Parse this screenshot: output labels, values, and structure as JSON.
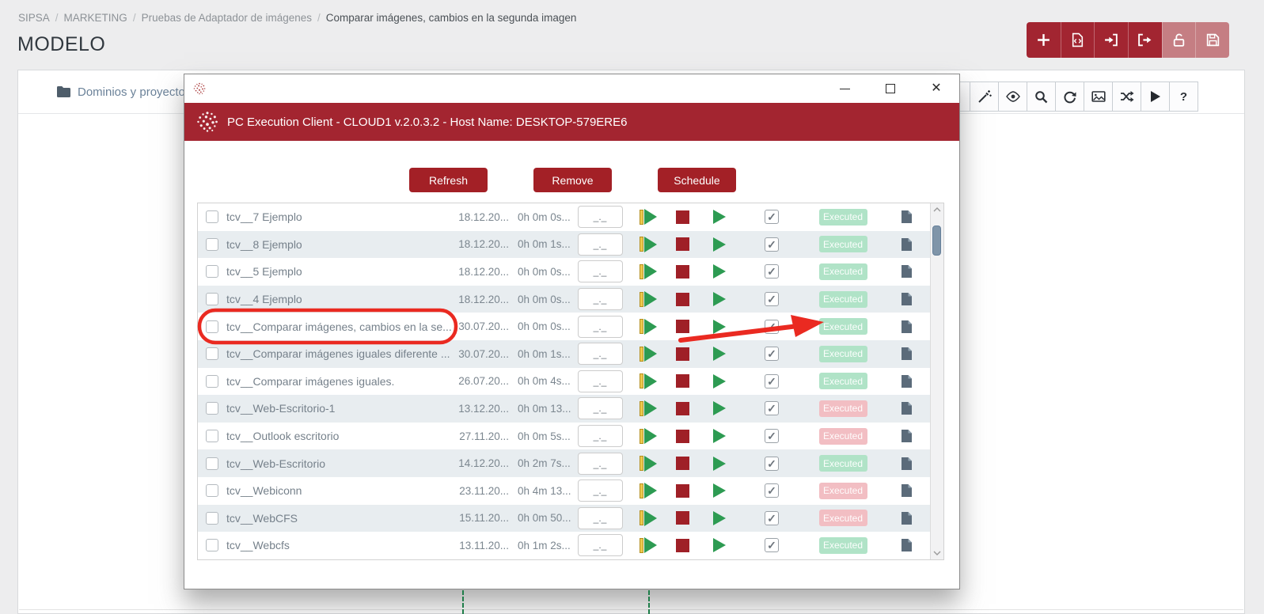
{
  "breadcrumb": {
    "separator": "/",
    "items": [
      "SIPSA",
      "MARKETING",
      "Pruebas de Adaptador de imágenes",
      "Comparar imágenes, cambios en la segunda imagen"
    ]
  },
  "page": {
    "title": "MODELO",
    "panel_tab": "Dominios y proyectos"
  },
  "header_toolbar": {
    "icons": [
      "add",
      "file-code",
      "sign-in",
      "sign-out",
      "unlock",
      "save"
    ],
    "disabled_icons": [
      "unlock",
      "save"
    ]
  },
  "background_toolbar": {
    "icons": [
      "text-one",
      "magic-wand",
      "eye",
      "search",
      "refresh",
      "image",
      "shuffle",
      "play",
      "help"
    ]
  },
  "modal": {
    "banner_title": "PC Execution Client - CLOUD1 v.2.0.3.2 - Host Name: DESKTOP-579ERE6",
    "window_controls": [
      "minimize",
      "maximize",
      "close"
    ],
    "close_glyph": "✕",
    "action_buttons": [
      {
        "label": "Refresh"
      },
      {
        "label": "Remove"
      },
      {
        "label": "Schedule"
      }
    ],
    "input_placeholder": "_._",
    "rows": [
      {
        "name": "tcv__7 Ejemplo",
        "date": "18.12.20...",
        "duration": "0h 0m 0s...",
        "status": "Executed",
        "status_color": "green",
        "checked": true
      },
      {
        "name": "tcv__8 Ejemplo",
        "date": "18.12.20...",
        "duration": "0h 0m 1s...",
        "status": "Executed",
        "status_color": "green",
        "checked": true
      },
      {
        "name": "tcv__5 Ejemplo",
        "date": "18.12.20...",
        "duration": "0h 0m 0s...",
        "status": "Executed",
        "status_color": "green",
        "checked": true
      },
      {
        "name": "tcv__4 Ejemplo",
        "date": "18.12.20...",
        "duration": "0h 0m 0s...",
        "status": "Executed",
        "status_color": "green",
        "checked": true
      },
      {
        "name": "tcv__Comparar imágenes, cambios en la se...",
        "date": "30.07.20...",
        "duration": "0h 0m 0s...",
        "status": "Executed",
        "status_color": "green",
        "checked": true,
        "annotated": true
      },
      {
        "name": "tcv__Comparar imágenes iguales diferente ...",
        "date": "30.07.20...",
        "duration": "0h 0m 1s...",
        "status": "Executed",
        "status_color": "green",
        "checked": true
      },
      {
        "name": "tcv__Comparar imágenes iguales.",
        "date": "26.07.20...",
        "duration": "0h 0m 4s...",
        "status": "Executed",
        "status_color": "green",
        "checked": true
      },
      {
        "name": "tcv__Web-Escritorio-1",
        "date": "13.12.20...",
        "duration": "0h 0m 13...",
        "status": "Executed",
        "status_color": "red",
        "checked": true
      },
      {
        "name": "tcv__Outlook escritorio",
        "date": "27.11.20...",
        "duration": "0h 0m 5s...",
        "status": "Executed",
        "status_color": "red",
        "checked": true
      },
      {
        "name": "tcv__Web-Escritorio",
        "date": "14.12.20...",
        "duration": "0h 2m 7s...",
        "status": "Executed",
        "status_color": "green",
        "checked": true
      },
      {
        "name": "tcv__Webiconn",
        "date": "23.11.20...",
        "duration": "0h 4m 13...",
        "status": "Executed",
        "status_color": "red",
        "checked": true
      },
      {
        "name": "tcv__WebCFS",
        "date": "15.11.20...",
        "duration": "0h 0m 50...",
        "status": "Executed",
        "status_color": "red",
        "checked": true
      },
      {
        "name": "tcv__Webcfs",
        "date": "13.11.20...",
        "duration": "0h 1m 2s...",
        "status": "Executed",
        "status_color": "green",
        "checked": true
      }
    ]
  },
  "annotations": {
    "highlighted_row": "tcv__Comparar imágenes, cambios en la se...",
    "shapes": [
      "red-oval-around-row-name",
      "red-arrow-to-executed-badge"
    ],
    "color": "#ea2a21"
  },
  "colors": {
    "banner_red": "#a32530",
    "button_red": "#a32026",
    "toolbar_red": "#a22531",
    "toolbar_red_disabled": "#c57e83",
    "badge_green": "#b0e3c7",
    "badge_red": "#f2bec3",
    "row_alt": "#e8edf0",
    "tab_blue": "#6b8299",
    "play_green": "#2d9b52",
    "stop_red": "#9f2027",
    "annotation_red": "#ea2a21",
    "dashed_line_green": "#1e7d49"
  }
}
